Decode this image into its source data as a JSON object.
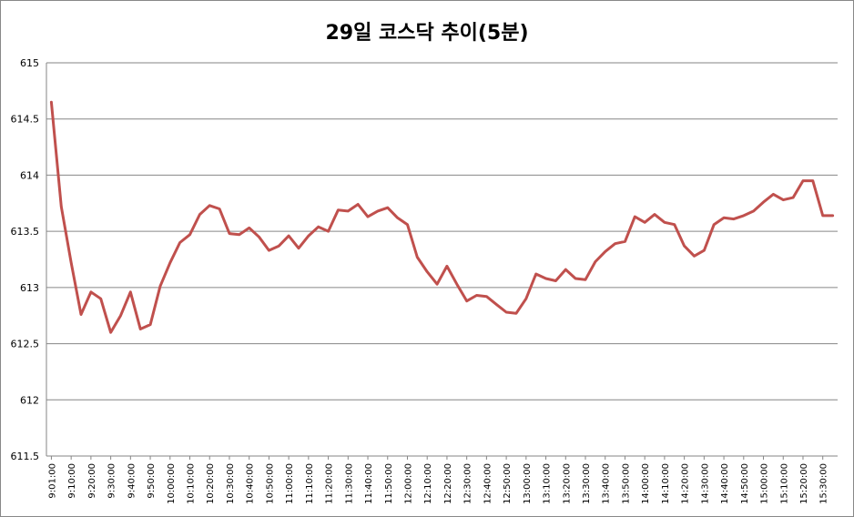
{
  "chart_data": {
    "type": "line",
    "title": "29일 코스닥 추이(5분)",
    "xlabel": "",
    "ylabel": "",
    "ylim": [
      611.5,
      615
    ],
    "yticks": [
      "611.5",
      "612",
      "612.5",
      "613",
      "613.5",
      "614",
      "614.5",
      "615"
    ],
    "xtick_labels": [
      "9:01:00",
      "9:10:00",
      "9:20:00",
      "9:30:00",
      "9:40:00",
      "9:50:00",
      "10:00:00",
      "10:10:00",
      "10:20:00",
      "10:30:00",
      "10:40:00",
      "10:50:00",
      "11:00:00",
      "11:10:00",
      "11:20:00",
      "11:30:00",
      "11:40:00",
      "11:50:00",
      "12:00:00",
      "12:10:00",
      "12:20:00",
      "12:30:00",
      "12:40:00",
      "12:50:00",
      "13:00:00",
      "13:10:00",
      "13:20:00",
      "13:30:00",
      "13:40:00",
      "13:50:00",
      "14:00:00",
      "14:10:00",
      "14:20:00",
      "14:30:00",
      "14:40:00",
      "14:50:00",
      "15:00:00",
      "15:10:00",
      "15:20:00",
      "15:30:00"
    ],
    "grid": true,
    "legend": "none",
    "line_color": "#c0504d",
    "series": [
      {
        "values": [
          614.65,
          613.72,
          613.22,
          612.76,
          612.96,
          612.9,
          612.6,
          612.75,
          612.96,
          612.63,
          612.67,
          613.01,
          613.22,
          613.4,
          613.47,
          613.65,
          613.73,
          613.7,
          613.48,
          613.47,
          613.53,
          613.45,
          613.33,
          613.37,
          613.46,
          613.35,
          613.46,
          613.54,
          613.5,
          613.69,
          613.68,
          613.74,
          613.63,
          613.68,
          613.71,
          613.62,
          613.56,
          613.27,
          613.14,
          613.03,
          613.19,
          613.03,
          612.88,
          612.93,
          612.92,
          612.85,
          612.78,
          612.77,
          612.9,
          613.12,
          613.08,
          613.06,
          613.16,
          613.08,
          613.07,
          613.23,
          613.32,
          613.39,
          613.41,
          613.63,
          613.58,
          613.65,
          613.58,
          613.56,
          613.37,
          613.28,
          613.33,
          613.56,
          613.62,
          613.61,
          613.64,
          613.68,
          613.76,
          613.83,
          613.78,
          613.8,
          613.95,
          613.95,
          613.64,
          613.64
        ]
      }
    ]
  }
}
